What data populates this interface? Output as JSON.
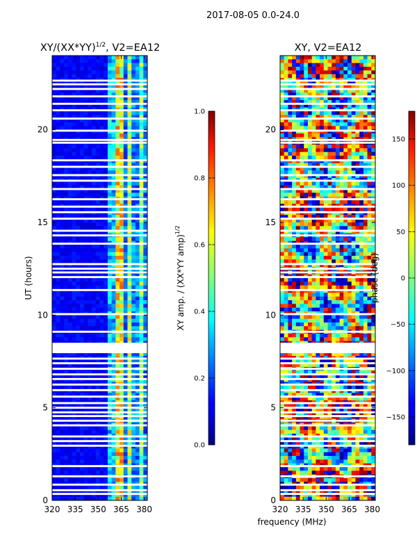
{
  "figure": {
    "suptitle": "2017-08-05 0.0-24.0",
    "xlabel": "frequency (MHz)"
  },
  "chart_data": [
    {
      "type": "heatmap",
      "title_prefix": "XY/(XX*YY)",
      "title_exp": "1/2",
      "title_suffix": ", V2=EA12",
      "ylabel": "UT (hours)",
      "xlim": [
        320,
        382
      ],
      "ylim": [
        0,
        24
      ],
      "xticks": [
        320,
        335,
        350,
        365,
        380
      ],
      "yticks": [
        0,
        5,
        10,
        15,
        20
      ],
      "colorbar": {
        "label_prefix": "XY amp. / (XX*YY amp)",
        "label_exp": "1/2",
        "range": [
          0.0,
          1.0
        ],
        "ticks": [
          "0.0",
          "0.2",
          "0.4",
          "0.6",
          "0.8",
          "1.0"
        ],
        "tick_values": [
          0.0,
          0.2,
          0.4,
          0.6,
          0.8,
          1.0
        ],
        "colormap": "jet"
      }
    },
    {
      "type": "heatmap",
      "title": "XY, V2=EA12",
      "xlim": [
        320,
        382
      ],
      "ylim": [
        0,
        24
      ],
      "xticks": [
        320,
        335,
        350,
        365,
        380
      ],
      "yticks": [
        0,
        5,
        10,
        15,
        20
      ],
      "colorbar": {
        "label": "phase (deg)",
        "range": [
          -180,
          180
        ],
        "ticks": [
          "150",
          "100",
          "50",
          "0",
          "−50",
          "−100",
          "−150"
        ],
        "tick_values": [
          150,
          100,
          50,
          0,
          -50,
          -100,
          -150
        ],
        "colormap": "jet"
      }
    }
  ]
}
